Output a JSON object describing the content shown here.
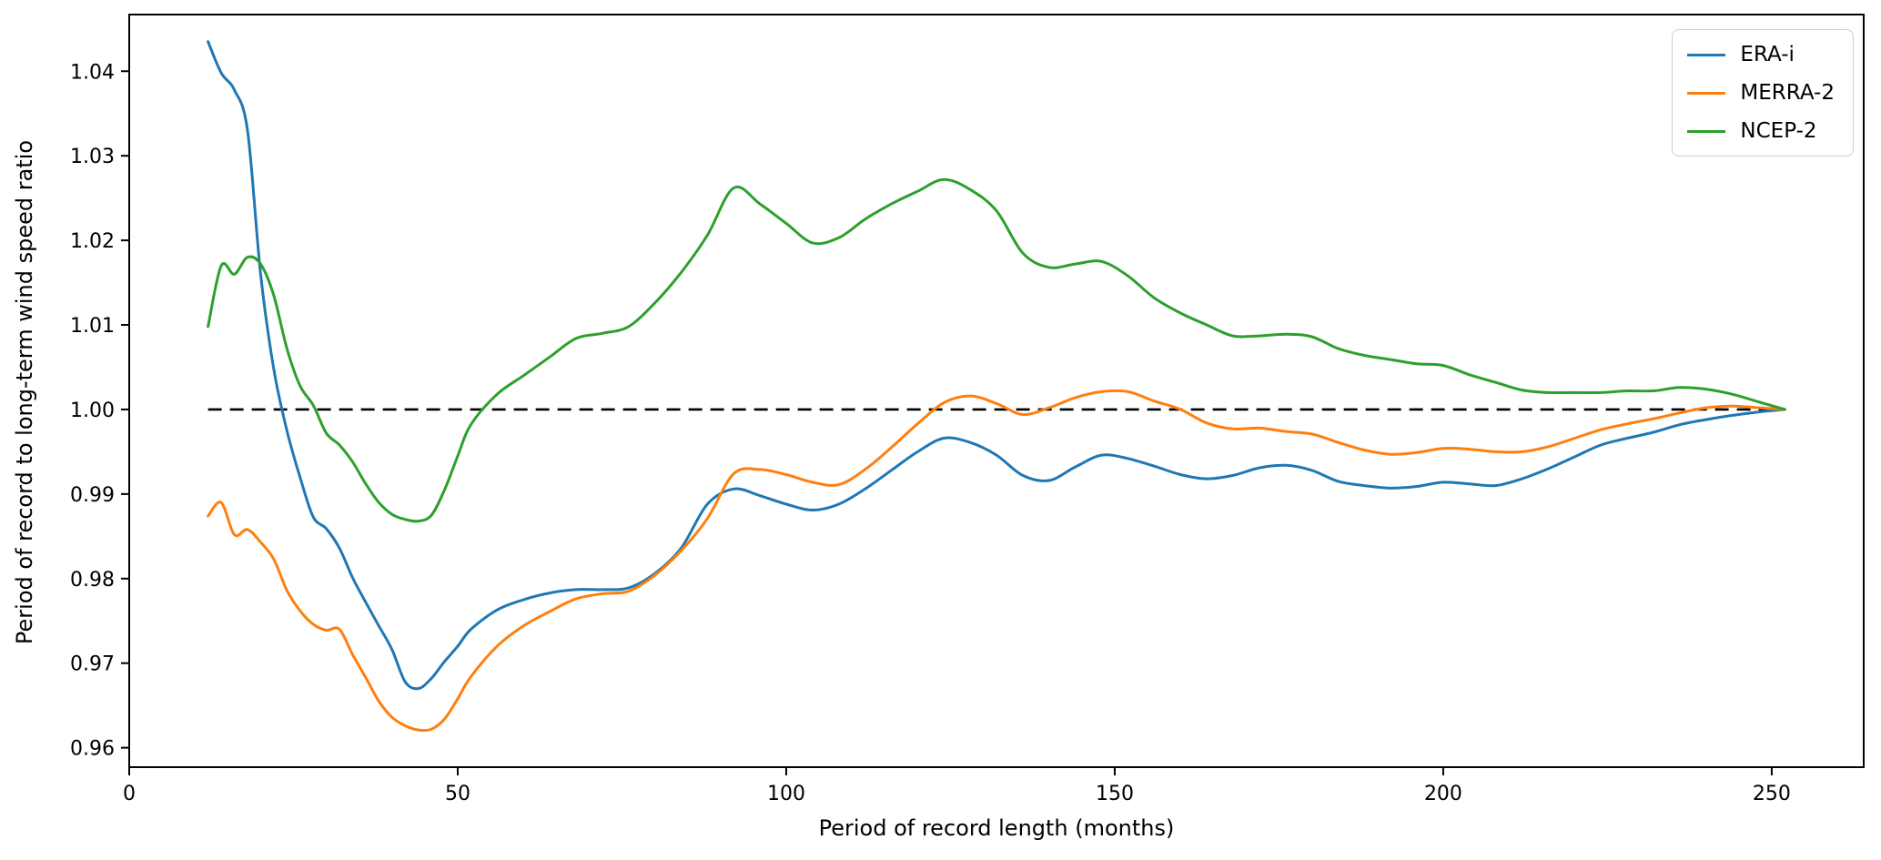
{
  "figure": {
    "background_color": "#ffffff",
    "frame_color": "#000000"
  },
  "chart_data": {
    "type": "line",
    "title": "",
    "xlabel": "Period of record length (months)",
    "ylabel": "Period of record to long-term wind speed ratio",
    "xlim": [
      0,
      264
    ],
    "ylim": [
      0.9577,
      1.0467
    ],
    "grid": false,
    "legend_position": "upper right",
    "xticks": {
      "values": [
        0,
        50,
        100,
        150,
        200,
        250
      ],
      "labels": [
        "0",
        "50",
        "100",
        "150",
        "200",
        "250"
      ]
    },
    "yticks": {
      "values": [
        0.96,
        0.97,
        0.98,
        0.99,
        1.0,
        1.01,
        1.02,
        1.03,
        1.04
      ],
      "labels": [
        "0.96",
        "0.97",
        "0.98",
        "0.99",
        "1.00",
        "1.01",
        "1.02",
        "1.03",
        "1.04"
      ]
    },
    "reference_line": {
      "y": 1.0,
      "x_start": 12,
      "x_end": 252,
      "style": "dashed",
      "color": "#000000"
    },
    "x": [
      12,
      14,
      16,
      18,
      20,
      22,
      24,
      26,
      28,
      30,
      32,
      34,
      36,
      38,
      40,
      42,
      44,
      46,
      48,
      50,
      52,
      56,
      60,
      64,
      68,
      72,
      76,
      80,
      84,
      88,
      92,
      96,
      100,
      104,
      108,
      112,
      116,
      120,
      124,
      128,
      132,
      136,
      140,
      144,
      148,
      152,
      156,
      160,
      164,
      168,
      172,
      176,
      180,
      184,
      188,
      192,
      196,
      200,
      204,
      208,
      212,
      216,
      220,
      224,
      228,
      232,
      236,
      240,
      244,
      248,
      252
    ],
    "series": [
      {
        "name": "ERA-i",
        "color": "#1f77b4",
        "values": [
          1.0435,
          1.0398,
          1.0378,
          1.033,
          1.016,
          1.0048,
          0.9975,
          0.992,
          0.9873,
          0.9859,
          0.9836,
          0.9801,
          0.9772,
          0.9744,
          0.9716,
          0.9678,
          0.967,
          0.9682,
          0.9702,
          0.972,
          0.974,
          0.9763,
          0.9775,
          0.9783,
          0.9787,
          0.9787,
          0.9789,
          0.9806,
          0.9836,
          0.9888,
          0.9906,
          0.9898,
          0.9888,
          0.9881,
          0.9888,
          0.9906,
          0.9928,
          0.995,
          0.9966,
          0.9961,
          0.9946,
          0.9922,
          0.9916,
          0.9932,
          0.9946,
          0.9942,
          0.9933,
          0.9923,
          0.9918,
          0.9922,
          0.9931,
          0.9934,
          0.9928,
          0.9915,
          0.991,
          0.9907,
          0.9909,
          0.9914,
          0.9912,
          0.991,
          0.9918,
          0.993,
          0.9944,
          0.9958,
          0.9966,
          0.9973,
          0.9982,
          0.9988,
          0.9993,
          0.9997,
          1.0
        ]
      },
      {
        "name": "MERRA-2",
        "color": "#ff7f0e",
        "values": [
          0.9874,
          0.989,
          0.9852,
          0.9858,
          0.9843,
          0.9823,
          0.9786,
          0.9762,
          0.9746,
          0.9739,
          0.974,
          0.971,
          0.9683,
          0.9655,
          0.9636,
          0.9626,
          0.9621,
          0.9622,
          0.9634,
          0.9658,
          0.9684,
          0.972,
          0.9744,
          0.9761,
          0.9776,
          0.9782,
          0.9785,
          0.9804,
          0.9833,
          0.9871,
          0.9924,
          0.9929,
          0.9923,
          0.9914,
          0.9911,
          0.9929,
          0.9955,
          0.9983,
          1.0008,
          1.0016,
          1.0007,
          0.9994,
          1.0002,
          1.0014,
          1.0021,
          1.0021,
          1.001,
          1.0,
          0.9984,
          0.9977,
          0.9978,
          0.9974,
          0.9971,
          0.9961,
          0.9952,
          0.9947,
          0.9949,
          0.9954,
          0.9953,
          0.995,
          0.995,
          0.9956,
          0.9966,
          0.9976,
          0.9983,
          0.9989,
          0.9996,
          1.0002,
          1.0004,
          1.0002,
          1.0
        ]
      },
      {
        "name": "NCEP-2",
        "color": "#2ca02c",
        "values": [
          1.0098,
          1.017,
          1.016,
          1.018,
          1.0172,
          1.0135,
          1.0072,
          1.0028,
          1.0005,
          0.9972,
          0.9958,
          0.9938,
          0.9912,
          0.989,
          0.9876,
          0.987,
          0.9868,
          0.9875,
          0.9905,
          0.9945,
          0.9982,
          1.0018,
          1.004,
          1.0062,
          1.0084,
          1.009,
          1.0098,
          1.0126,
          1.0162,
          1.0206,
          1.0262,
          1.0243,
          1.022,
          1.0197,
          1.0203,
          1.0225,
          1.0243,
          1.0258,
          1.0272,
          1.026,
          1.0235,
          1.0185,
          1.0168,
          1.0172,
          1.0175,
          1.0158,
          1.0132,
          1.0114,
          1.01,
          1.0087,
          1.0087,
          1.0089,
          1.0086,
          1.0072,
          1.0064,
          1.0059,
          1.0054,
          1.0052,
          1.0041,
          1.0032,
          1.0023,
          1.002,
          1.002,
          1.002,
          1.0022,
          1.0022,
          1.0026,
          1.0024,
          1.0018,
          1.0009,
          1.0
        ]
      }
    ]
  }
}
